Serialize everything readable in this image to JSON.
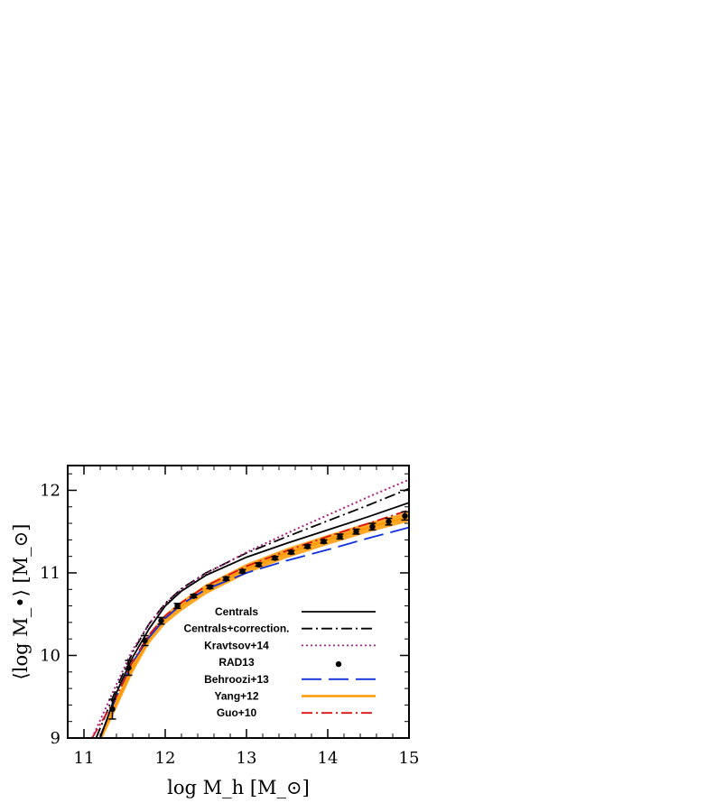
{
  "chart_data": {
    "type": "line",
    "title": "",
    "xlabel": "log M_h [M_⊙]",
    "ylabel": "⟨log M_•⟩ [M_⊙]",
    "xlim": [
      10.8,
      15
    ],
    "ylim": [
      9,
      12.3
    ],
    "xticks": [
      11,
      12,
      13,
      14,
      15
    ],
    "yticks": [
      9,
      10,
      11,
      12
    ],
    "grid": false,
    "legend_position": "bottom-right",
    "series": [
      {
        "name": "Centrals",
        "style": "solid",
        "color": "#000000",
        "x": [
          11.2,
          11.4,
          11.6,
          11.8,
          12.0,
          12.2,
          12.5,
          13.0,
          13.5,
          14.0,
          14.5,
          15.0
        ],
        "y": [
          9.0,
          9.55,
          9.98,
          10.32,
          10.6,
          10.78,
          10.97,
          11.19,
          11.36,
          11.52,
          11.68,
          11.85
        ]
      },
      {
        "name": "Centrals+correction.",
        "style": "dashdot",
        "color": "#000000",
        "x": [
          11.15,
          11.4,
          11.6,
          11.8,
          12.0,
          12.2,
          12.5,
          13.0,
          13.5,
          14.0,
          14.5,
          15.0
        ],
        "y": [
          9.0,
          9.6,
          10.04,
          10.38,
          10.63,
          10.81,
          11.0,
          11.24,
          11.44,
          11.63,
          11.82,
          12.02
        ]
      },
      {
        "name": "Kravtsov+14",
        "style": "dotted",
        "color": "#aa2288",
        "x": [
          11.1,
          11.4,
          11.6,
          11.8,
          12.0,
          12.2,
          12.5,
          13.0,
          13.5,
          14.0,
          14.5,
          15.0
        ],
        "y": [
          9.0,
          9.65,
          10.07,
          10.38,
          10.62,
          10.8,
          10.99,
          11.25,
          11.48,
          11.7,
          11.92,
          12.13
        ]
      },
      {
        "name": "RAD13",
        "style": "points",
        "color": "#000000",
        "x": [
          11.35,
          11.55,
          11.75,
          11.95,
          12.15,
          12.35,
          12.55,
          12.75,
          12.95,
          13.15,
          13.35,
          13.55,
          13.75,
          13.95,
          14.15,
          14.35,
          14.55,
          14.75,
          14.95
        ],
        "y": [
          9.35,
          9.85,
          10.18,
          10.42,
          10.6,
          10.72,
          10.83,
          10.93,
          11.02,
          11.1,
          11.18,
          11.25,
          11.32,
          11.38,
          11.44,
          11.5,
          11.56,
          11.62,
          11.69
        ],
        "yerr": [
          0.12,
          0.09,
          0.06,
          0.04,
          0.03,
          0.02,
          0.02,
          0.02,
          0.02,
          0.02,
          0.02,
          0.02,
          0.02,
          0.02,
          0.03,
          0.03,
          0.04,
          0.04,
          0.05
        ]
      },
      {
        "name": "Behroozi+13",
        "style": "longdash",
        "color": "#1030dd",
        "x": [
          11.2,
          11.4,
          11.6,
          11.8,
          12.0,
          12.2,
          12.5,
          13.0,
          13.5,
          14.0,
          14.5,
          15.0
        ],
        "y": [
          9.02,
          9.5,
          9.92,
          10.22,
          10.45,
          10.62,
          10.8,
          11.0,
          11.15,
          11.28,
          11.42,
          11.55
        ]
      },
      {
        "name": "Yang+12",
        "style": "band",
        "color": "#ff9900",
        "x": [
          11.2,
          11.4,
          11.6,
          11.8,
          12.0,
          12.2,
          12.5,
          13.0,
          13.5,
          14.0,
          14.5,
          15.0
        ],
        "y": [
          9.0,
          9.42,
          9.85,
          10.2,
          10.44,
          10.6,
          10.8,
          11.05,
          11.24,
          11.4,
          11.55,
          11.68
        ],
        "band_width": 0.06
      },
      {
        "name": "Guo+10",
        "style": "dashdot",
        "color": "#dd1111",
        "x": [
          11.1,
          11.4,
          11.6,
          11.8,
          12.0,
          12.2,
          12.5,
          13.0,
          13.5,
          14.0,
          14.5,
          15.0
        ],
        "y": [
          9.0,
          9.5,
          9.93,
          10.25,
          10.48,
          10.64,
          10.84,
          11.08,
          11.27,
          11.44,
          11.6,
          11.76
        ]
      }
    ]
  }
}
